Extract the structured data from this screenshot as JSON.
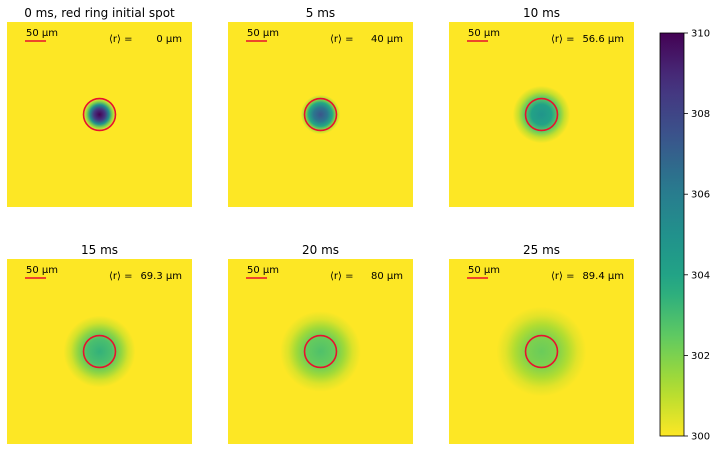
{
  "chart_data": {
    "type": "heatmap",
    "colormap": "viridis (reversed)",
    "colorbar": {
      "vmin": 300,
      "vmax": 310,
      "ticks": [
        "300",
        "302",
        "304",
        "306",
        "308",
        "310"
      ],
      "tick_values": [
        300,
        302,
        304,
        306,
        308,
        310
      ]
    },
    "background_value": 300,
    "panels": [
      {
        "title": "0 ms, red ring initial spot",
        "r_label": "⟨r⟩ =",
        "r_value": "0 μm",
        "r_um": 0,
        "center_value": 310,
        "glow_um": 8
      },
      {
        "title": "5 ms",
        "r_label": "⟨r⟩ =",
        "r_value": "40 μm",
        "r_um": 40,
        "center_value": 307.4,
        "glow_um": 22
      },
      {
        "title": "10 ms",
        "r_label": "⟨r⟩ =",
        "r_value": "56.6 μm",
        "r_um": 56.6,
        "center_value": 304.8,
        "glow_um": 32
      },
      {
        "title": "15 ms",
        "r_label": "⟨r⟩ =",
        "r_value": "69.3 μm",
        "r_um": 69.3,
        "center_value": 303.4,
        "glow_um": 40
      },
      {
        "title": "20 ms",
        "r_label": "⟨r⟩ =",
        "r_value": "80 μm",
        "r_um": 80,
        "center_value": 302.8,
        "glow_um": 45
      },
      {
        "title": "25 ms",
        "r_label": "⟨r⟩ =",
        "r_value": "89.4 μm",
        "r_um": 89.4,
        "center_value": 302.3,
        "glow_um": 50
      }
    ],
    "scalebar": {
      "label": "50 μm",
      "length_um": 50
    },
    "ring": {
      "color": "#e8112d",
      "radius_um": 30
    },
    "field_size_um": 330
  }
}
